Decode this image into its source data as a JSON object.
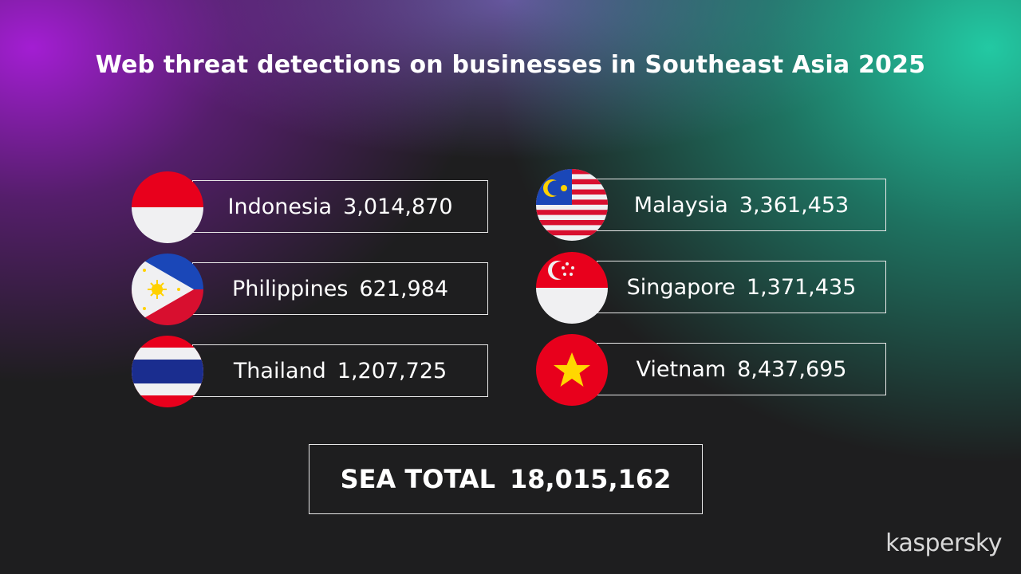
{
  "title": "Web threat detections on businesses in Southeast Asia 2025",
  "countries": [
    {
      "name": "Indonesia",
      "value": "3,014,870",
      "flag": "indonesia-flag"
    },
    {
      "name": "Philippines",
      "value": "621,984",
      "flag": "philippines-flag"
    },
    {
      "name": "Thailand",
      "value": "1,207,725",
      "flag": "thailand-flag"
    },
    {
      "name": "Malaysia",
      "value": "3,361,453",
      "flag": "malaysia-flag"
    },
    {
      "name": "Singapore",
      "value": "1,371,435",
      "flag": "singapore-flag"
    },
    {
      "name": "Vietnam",
      "value": "8,437,695",
      "flag": "vietnam-flag"
    }
  ],
  "total": {
    "label": "SEA TOTAL",
    "value": "18,015,162"
  },
  "brand": "kaspersky"
}
